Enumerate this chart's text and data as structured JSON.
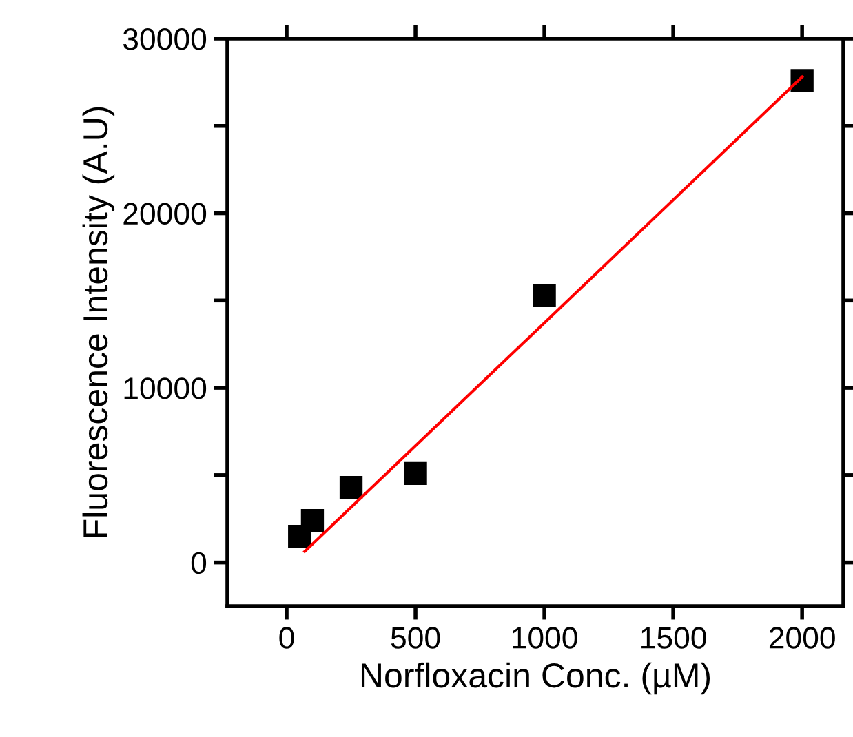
{
  "chart_data": {
    "type": "scatter",
    "xlabel": "Norfloxacin Conc. (µM)",
    "ylabel": "Fluorescence Intensity (A.U)",
    "marker": "square",
    "grid": false,
    "xlim": [
      -230,
      2160
    ],
    "ylim": [
      -2500,
      30000
    ],
    "xticks": [
      0,
      500,
      1000,
      1500,
      2000
    ],
    "yticks": [
      0,
      {
        "value": 5000,
        "label": null
      },
      10000,
      {
        "value": 15000,
        "label": null
      },
      20000,
      {
        "value": 25000,
        "label": null
      },
      30000
    ],
    "series": [
      {
        "color": "#000000",
        "x": [
          50,
          100,
          250,
          500,
          1000,
          2000
        ],
        "values": [
          1500,
          2400,
          4300,
          5100,
          15300,
          27600
        ]
      },
      {
        "type": "line",
        "color": "#ff0000",
        "marker": "none",
        "x": [
          70,
          2000
        ],
        "values": [
          630,
          27800
        ]
      }
    ]
  }
}
